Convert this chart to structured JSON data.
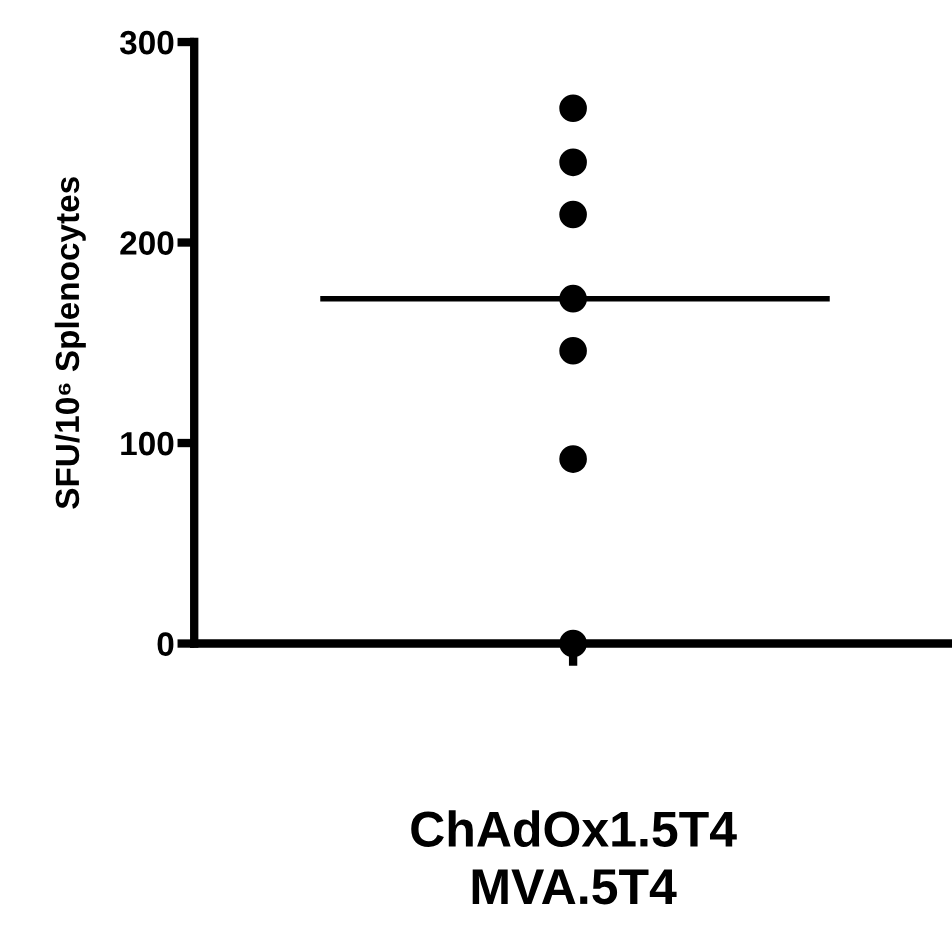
{
  "chart_data": {
    "type": "scatter",
    "ylabel": "SFU/10⁶ Splenocytes",
    "categories": [
      "ChAdOx1.5T4\nMVA.5T4"
    ],
    "series": [
      {
        "color": "#000000",
        "x": [
          "ChAdOx1.5T4\nMVA.5T4",
          "ChAdOx1.5T4\nMVA.5T4",
          "ChAdOx1.5T4\nMVA.5T4",
          "ChAdOx1.5T4\nMVA.5T4",
          "ChAdOx1.5T4\nMVA.5T4",
          "ChAdOx1.5T4\nMVA.5T4",
          "ChAdOx1.5T4\nMVA.5T4"
        ],
        "values": [
          267,
          240,
          214,
          172,
          146,
          92,
          0
        ]
      }
    ],
    "ref_lines": [
      {
        "axis": "y",
        "value": 172,
        "color": "#000000",
        "line_style": "solid"
      }
    ],
    "ylim": [
      0,
      300
    ],
    "yticks": [
      0,
      100,
      200,
      300
    ],
    "marker": "circle",
    "grid": false,
    "legend": false
  }
}
